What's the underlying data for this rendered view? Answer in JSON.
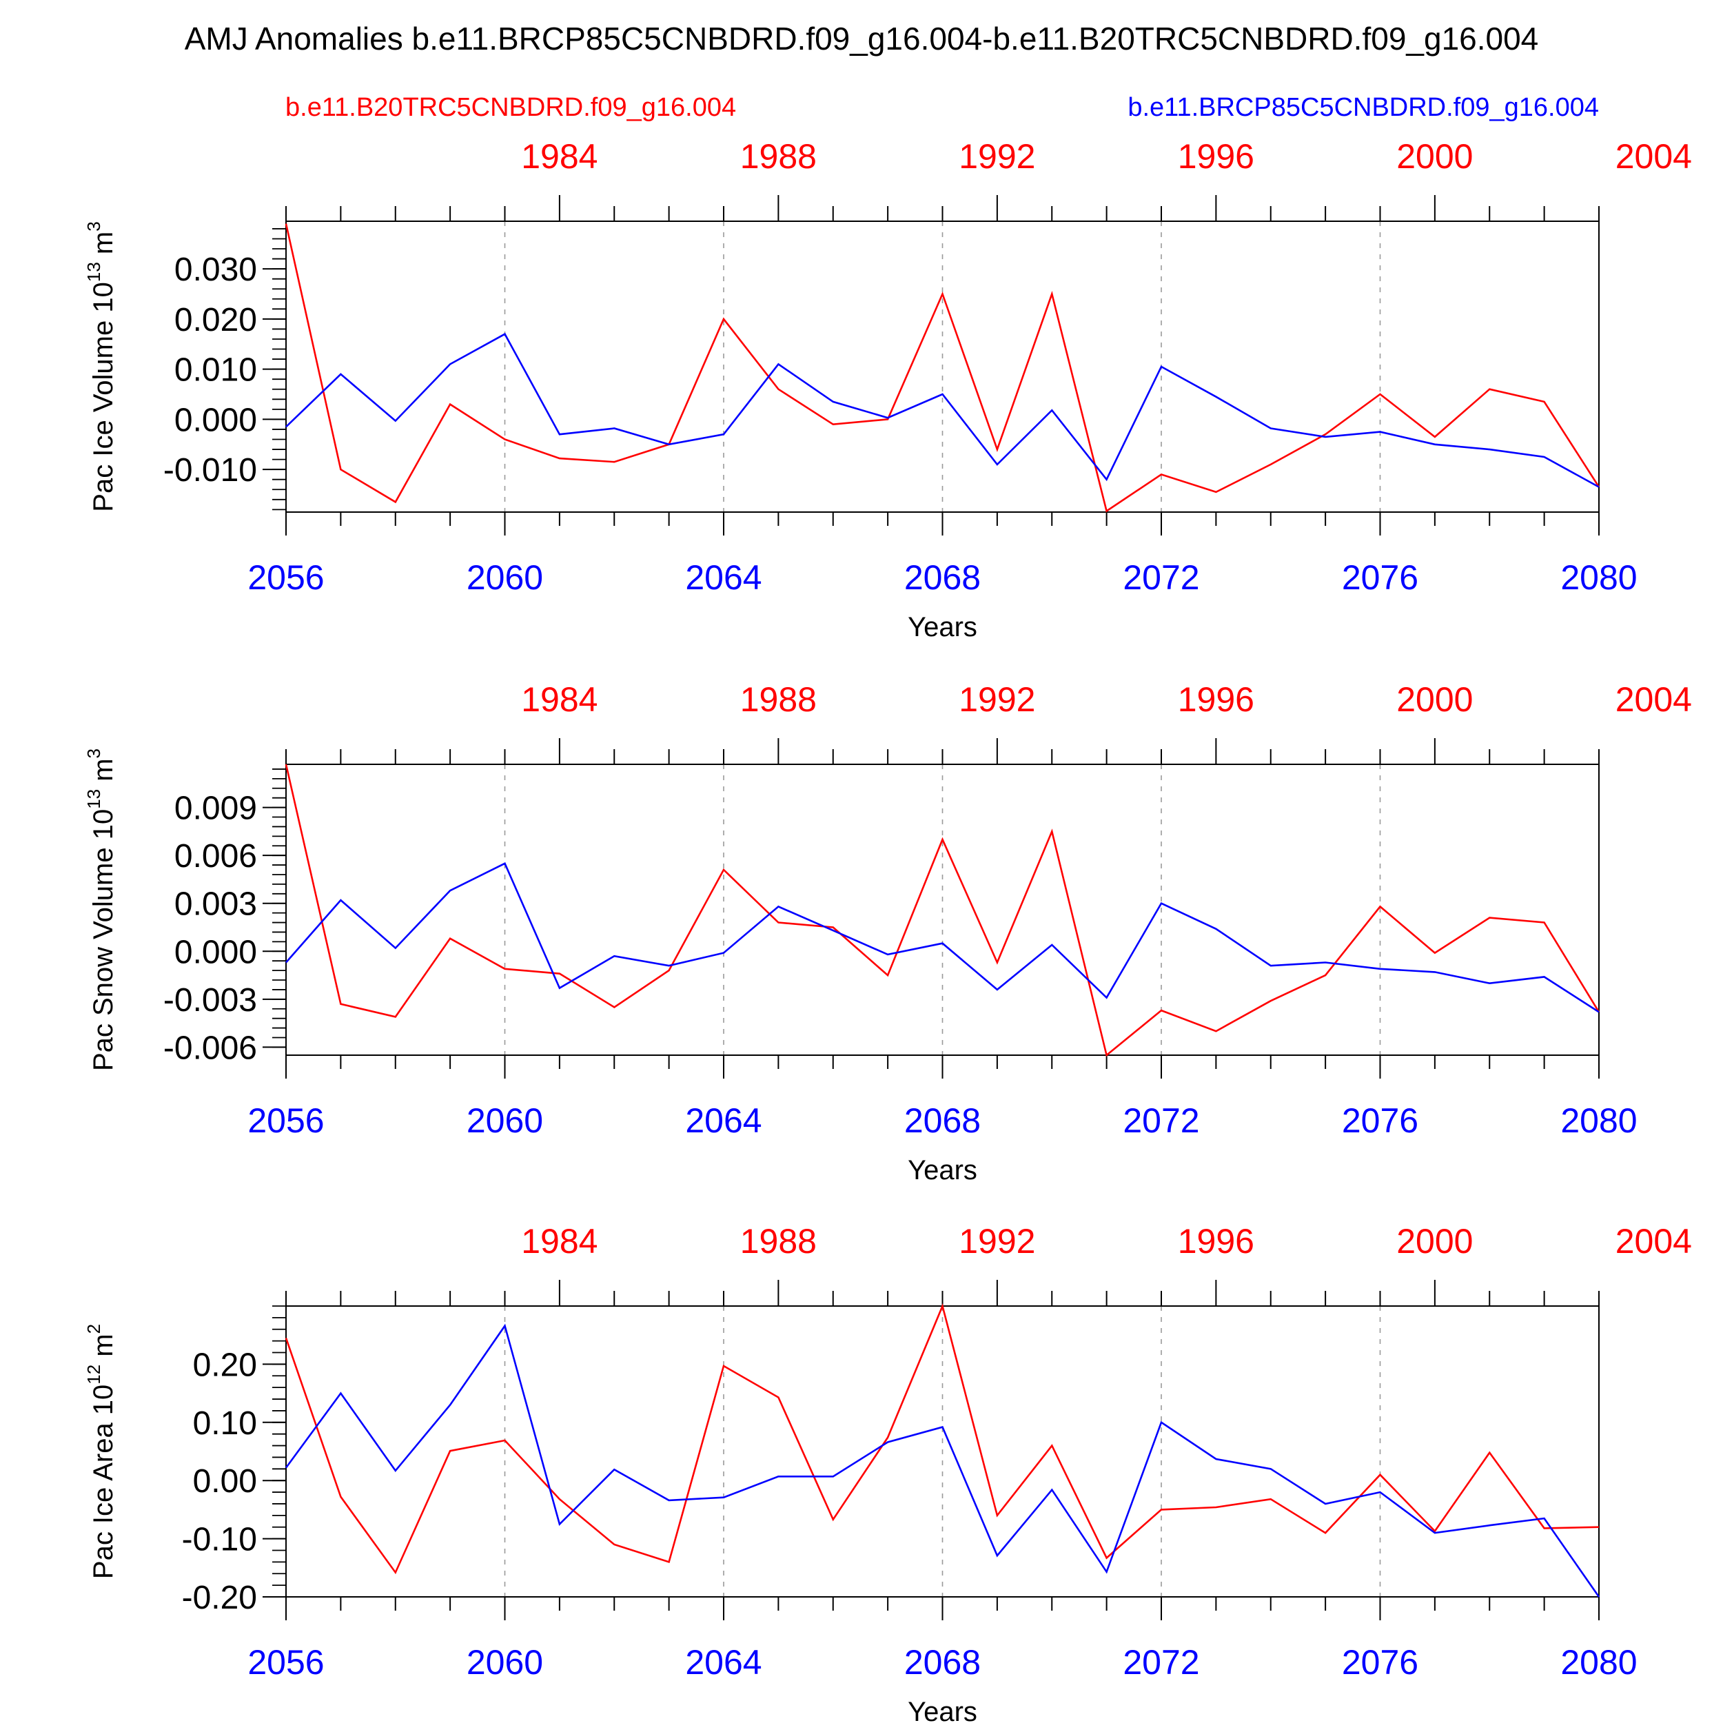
{
  "title": "AMJ Anomalies b.e11.BRCP85C5CNBDRD.f09_g16.004-b.e11.B20TRC5CNBDRD.f09_g16.004",
  "legend": {
    "left_label": "b.e11.B20TRC5CNBDRD.f09_g16.004",
    "right_label": "b.e11.BRCP85C5CNBDRD.f09_g16.004"
  },
  "colors": {
    "historical": "#ff0000",
    "rcp85": "#0000ff",
    "axis": "#000000",
    "grid": "#9a9a9a"
  },
  "chart_data": [
    {
      "type": "line",
      "ylabel": "Pac Ice Volume 10",
      "ylabel_exp": "13",
      "ylabel_unit": " m",
      "ylabel_unit_exp": "3",
      "xlabel": "Years",
      "ylim": [
        -0.0185,
        0.0395
      ],
      "yticks": [
        -0.01,
        0.0,
        0.01,
        0.02,
        0.03
      ],
      "ytick_labels": [
        "-0.010",
        "0.000",
        "0.010",
        "0.020",
        "0.030"
      ],
      "yminor_step": 0.002,
      "xlim": [
        2056,
        2080
      ],
      "xticks": [
        2056,
        2060,
        2064,
        2068,
        2072,
        2076,
        2080
      ],
      "xtick_labels": [
        "2056",
        "2060",
        "2064",
        "2068",
        "2072",
        "2076",
        "2080"
      ],
      "top_ticks": [
        1984,
        1988,
        1992,
        1996,
        2000,
        2004
      ],
      "top_tick_labels": [
        "1984",
        "1988",
        "1992",
        "1996",
        "2000",
        "2004"
      ],
      "top_offset": 77,
      "grid_x": [
        2060,
        2064,
        2068,
        2072,
        2076
      ],
      "x": [
        2056,
        2057,
        2058,
        2059,
        2060,
        2061,
        2062,
        2063,
        2064,
        2065,
        2066,
        2067,
        2068,
        2069,
        2070,
        2071,
        2072,
        2073,
        2074,
        2075,
        2076,
        2077,
        2078,
        2079,
        2080
      ],
      "series": [
        {
          "name": "b.e11.B20TRC5CNBDRD.f09_g16.004",
          "color": "#ff0000",
          "values": [
            0.039,
            -0.01,
            -0.0165,
            0.003,
            -0.004,
            -0.0078,
            -0.0085,
            -0.005,
            0.02,
            0.006,
            -0.001,
            0.0,
            0.025,
            -0.006,
            0.025,
            -0.0183,
            -0.011,
            -0.0145,
            -0.009,
            -0.003,
            0.005,
            -0.0035,
            0.006,
            0.0035,
            -0.0135
          ]
        },
        {
          "name": "b.e11.BRCP85C5CNBDRD.f09_g16.004",
          "color": "#0000ff",
          "values": [
            -0.0015,
            0.009,
            -0.0003,
            0.011,
            0.017,
            -0.003,
            -0.0018,
            -0.005,
            -0.003,
            0.011,
            0.0035,
            0.0003,
            0.005,
            -0.009,
            0.0018,
            -0.012,
            0.0105,
            0.0045,
            -0.0018,
            -0.0035,
            -0.0025,
            -0.005,
            -0.006,
            -0.0075,
            -0.0135
          ]
        }
      ]
    },
    {
      "type": "line",
      "ylabel": "Pac Snow Volume 10",
      "ylabel_exp": "13",
      "ylabel_unit": " m",
      "ylabel_unit_exp": "3",
      "xlabel": "Years",
      "ylim": [
        -0.0065,
        0.0117
      ],
      "yticks": [
        -0.006,
        -0.003,
        0.0,
        0.003,
        0.006,
        0.009
      ],
      "ytick_labels": [
        "-0.006",
        "-0.003",
        "0.000",
        "0.003",
        "0.006",
        "0.009"
      ],
      "yminor_step": 0.0006,
      "xlim": [
        2056,
        2080
      ],
      "xticks": [
        2056,
        2060,
        2064,
        2068,
        2072,
        2076,
        2080
      ],
      "xtick_labels": [
        "2056",
        "2060",
        "2064",
        "2068",
        "2072",
        "2076",
        "2080"
      ],
      "top_ticks": [
        1984,
        1988,
        1992,
        1996,
        2000,
        2004
      ],
      "top_tick_labels": [
        "1984",
        "1988",
        "1992",
        "1996",
        "2000",
        "2004"
      ],
      "top_offset": 77,
      "grid_x": [
        2060,
        2064,
        2068,
        2072,
        2076
      ],
      "x": [
        2056,
        2057,
        2058,
        2059,
        2060,
        2061,
        2062,
        2063,
        2064,
        2065,
        2066,
        2067,
        2068,
        2069,
        2070,
        2071,
        2072,
        2073,
        2074,
        2075,
        2076,
        2077,
        2078,
        2079,
        2080
      ],
      "series": [
        {
          "name": "b.e11.B20TRC5CNBDRD.f09_g16.004",
          "color": "#ff0000",
          "values": [
            0.0117,
            -0.0033,
            -0.0041,
            0.0008,
            -0.0011,
            -0.0014,
            -0.0035,
            -0.0012,
            0.0051,
            0.0018,
            0.0015,
            -0.0015,
            0.007,
            -0.0007,
            0.0075,
            -0.0065,
            -0.0037,
            -0.005,
            -0.0031,
            -0.0015,
            0.0028,
            -0.0001,
            0.0021,
            0.0018,
            -0.0038
          ]
        },
        {
          "name": "b.e11.BRCP85C5CNBDRD.f09_g16.004",
          "color": "#0000ff",
          "values": [
            -0.0007,
            0.0032,
            0.0002,
            0.0038,
            0.0055,
            -0.0023,
            -0.0003,
            -0.0009,
            -0.0001,
            0.0028,
            0.0013,
            -0.0002,
            0.0005,
            -0.0024,
            0.0004,
            -0.0029,
            0.003,
            0.0014,
            -0.0009,
            -0.0007,
            -0.0011,
            -0.0013,
            -0.002,
            -0.0016,
            -0.0038
          ]
        }
      ]
    },
    {
      "type": "line",
      "ylabel": "Pac Ice Area 10",
      "ylabel_exp": "12",
      "ylabel_unit": " m",
      "ylabel_unit_exp": "2",
      "xlabel": "Years",
      "ylim": [
        -0.2,
        0.3
      ],
      "yticks": [
        -0.2,
        -0.1,
        0.0,
        0.1,
        0.2
      ],
      "ytick_labels": [
        "-0.20",
        "-0.10",
        "0.00",
        "0.10",
        "0.20"
      ],
      "yminor_step": 0.02,
      "xlim": [
        2056,
        2080
      ],
      "xticks": [
        2056,
        2060,
        2064,
        2068,
        2072,
        2076,
        2080
      ],
      "xtick_labels": [
        "2056",
        "2060",
        "2064",
        "2068",
        "2072",
        "2076",
        "2080"
      ],
      "top_ticks": [
        1984,
        1988,
        1992,
        1996,
        2000,
        2004
      ],
      "top_tick_labels": [
        "1984",
        "1988",
        "1992",
        "1996",
        "2000",
        "2004"
      ],
      "top_offset": 77,
      "grid_x": [
        2060,
        2064,
        2068,
        2072,
        2076
      ],
      "x": [
        2056,
        2057,
        2058,
        2059,
        2060,
        2061,
        2062,
        2063,
        2064,
        2065,
        2066,
        2067,
        2068,
        2069,
        2070,
        2071,
        2072,
        2073,
        2074,
        2075,
        2076,
        2077,
        2078,
        2079,
        2080
      ],
      "series": [
        {
          "name": "b.e11.B20TRC5CNBDRD.f09_g16.004",
          "color": "#ff0000",
          "values": [
            0.245,
            -0.028,
            -0.158,
            0.051,
            0.069,
            -0.032,
            -0.11,
            -0.14,
            0.197,
            0.143,
            -0.067,
            0.074,
            0.3,
            -0.06,
            0.06,
            -0.133,
            -0.05,
            -0.046,
            -0.032,
            -0.09,
            0.01,
            -0.087,
            0.048,
            -0.082,
            -0.08
          ]
        },
        {
          "name": "b.e11.BRCP85C5CNBDRD.f09_g16.004",
          "color": "#0000ff",
          "values": [
            0.022,
            0.15,
            0.017,
            0.13,
            0.266,
            -0.075,
            0.019,
            -0.034,
            -0.029,
            0.007,
            0.007,
            0.066,
            0.092,
            -0.129,
            -0.016,
            -0.157,
            0.1,
            0.037,
            0.02,
            -0.04,
            -0.02,
            -0.09,
            -0.077,
            -0.065,
            -0.2
          ]
        }
      ]
    }
  ]
}
